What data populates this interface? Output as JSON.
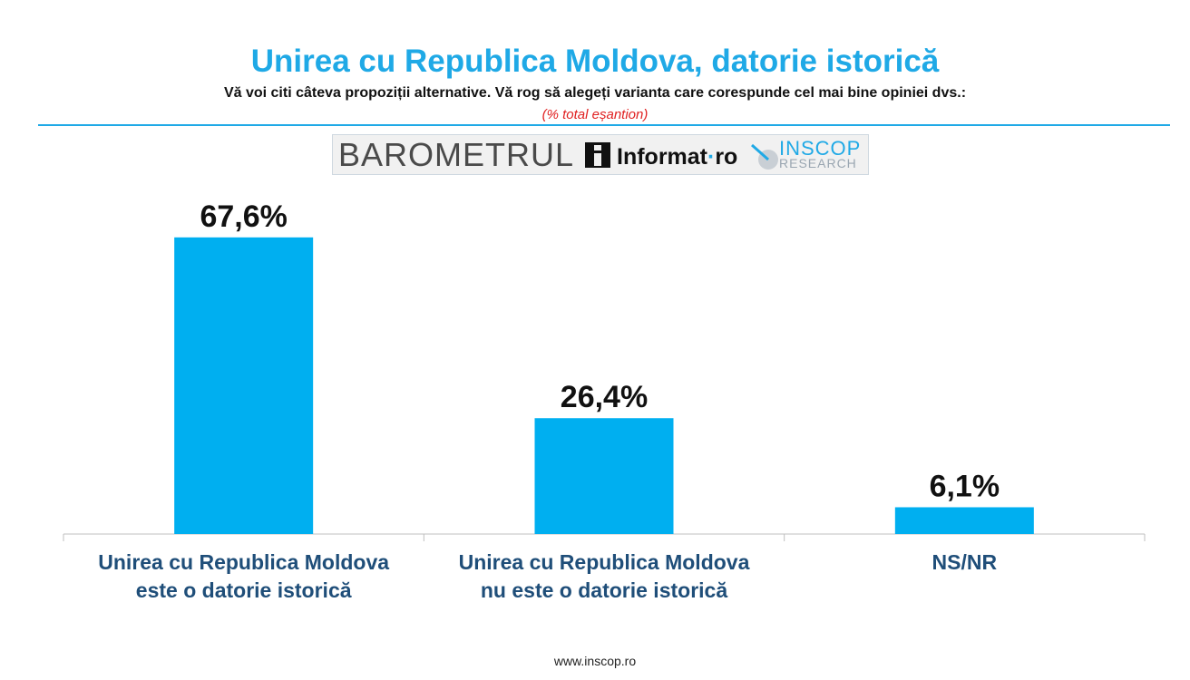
{
  "header": {
    "title": "Unirea cu Republica Moldova, datorie istorică",
    "subtitle": "Vă voi citi câteva propoziții alternative. Vă rog să alegeți varianta care corespunde cel mai bine opiniei dvs.:",
    "note": "(% total eșantion)"
  },
  "logos": {
    "barometrul": "BAROMETRUL",
    "informat": "Informat",
    "informat_tld": "ro",
    "inscop": "INSCOP",
    "research": "RESEARCH"
  },
  "colors": {
    "accent": "#1fa9e6",
    "bar": "#00aff0",
    "category_label": "#1f4e79"
  },
  "chart_data": {
    "type": "bar",
    "categories": [
      [
        "Unirea cu Republica Moldova",
        "este o datorie istorică"
      ],
      [
        "Unirea cu Republica Moldova",
        "nu este o datorie istorică"
      ],
      [
        "NS/NR"
      ]
    ],
    "values": [
      67.6,
      26.4,
      6.1
    ],
    "value_labels": [
      "67,6%",
      "26,4%",
      "6,1%"
    ],
    "ylim": [
      0,
      75
    ],
    "grid": false,
    "legend": "none"
  },
  "footer": {
    "url": "www.inscop.ro"
  }
}
